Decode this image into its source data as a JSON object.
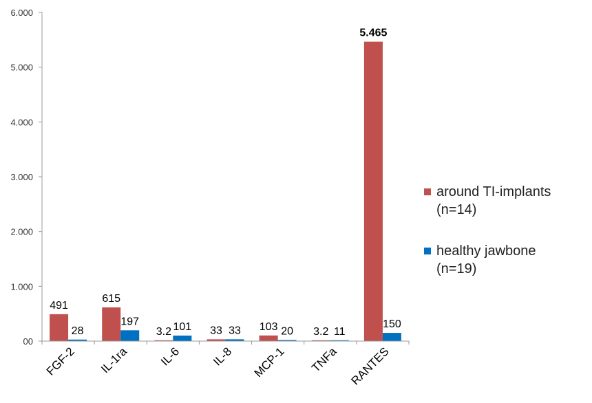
{
  "chart_data": {
    "type": "bar",
    "categories": [
      "FGF-2",
      "IL-1ra",
      "IL-6",
      "IL-8",
      "MCP-1",
      "TNFa",
      "RANTES"
    ],
    "series": [
      {
        "name": "around TI-implants (n=14)",
        "legend_lines": [
          "around TI-implants",
          "(n=14)"
        ],
        "color": "#C0504D",
        "values": [
          491,
          615,
          3.2,
          33,
          103,
          3.2,
          5465
        ],
        "labels": [
          "491",
          "615",
          "3.2",
          "33",
          "103",
          "3.2",
          "5.465"
        ]
      },
      {
        "name": "healthy jawbone (n=19)",
        "legend_lines": [
          "healthy jawbone",
          "(n=19)"
        ],
        "color": "#0070C0",
        "values": [
          28,
          197,
          101,
          33,
          20,
          11,
          150
        ],
        "labels": [
          "28",
          "197",
          "101",
          "33",
          "20",
          "11",
          "150"
        ]
      }
    ],
    "ylim": [
      0,
      6000
    ],
    "yticks": [
      0,
      1000,
      2000,
      3000,
      4000,
      5000,
      6000
    ],
    "ytick_labels": [
      "00",
      "1.000",
      "2.000",
      "3.000",
      "4.000",
      "5.000",
      "6.000"
    ],
    "grid": false,
    "legend_position": "right"
  }
}
